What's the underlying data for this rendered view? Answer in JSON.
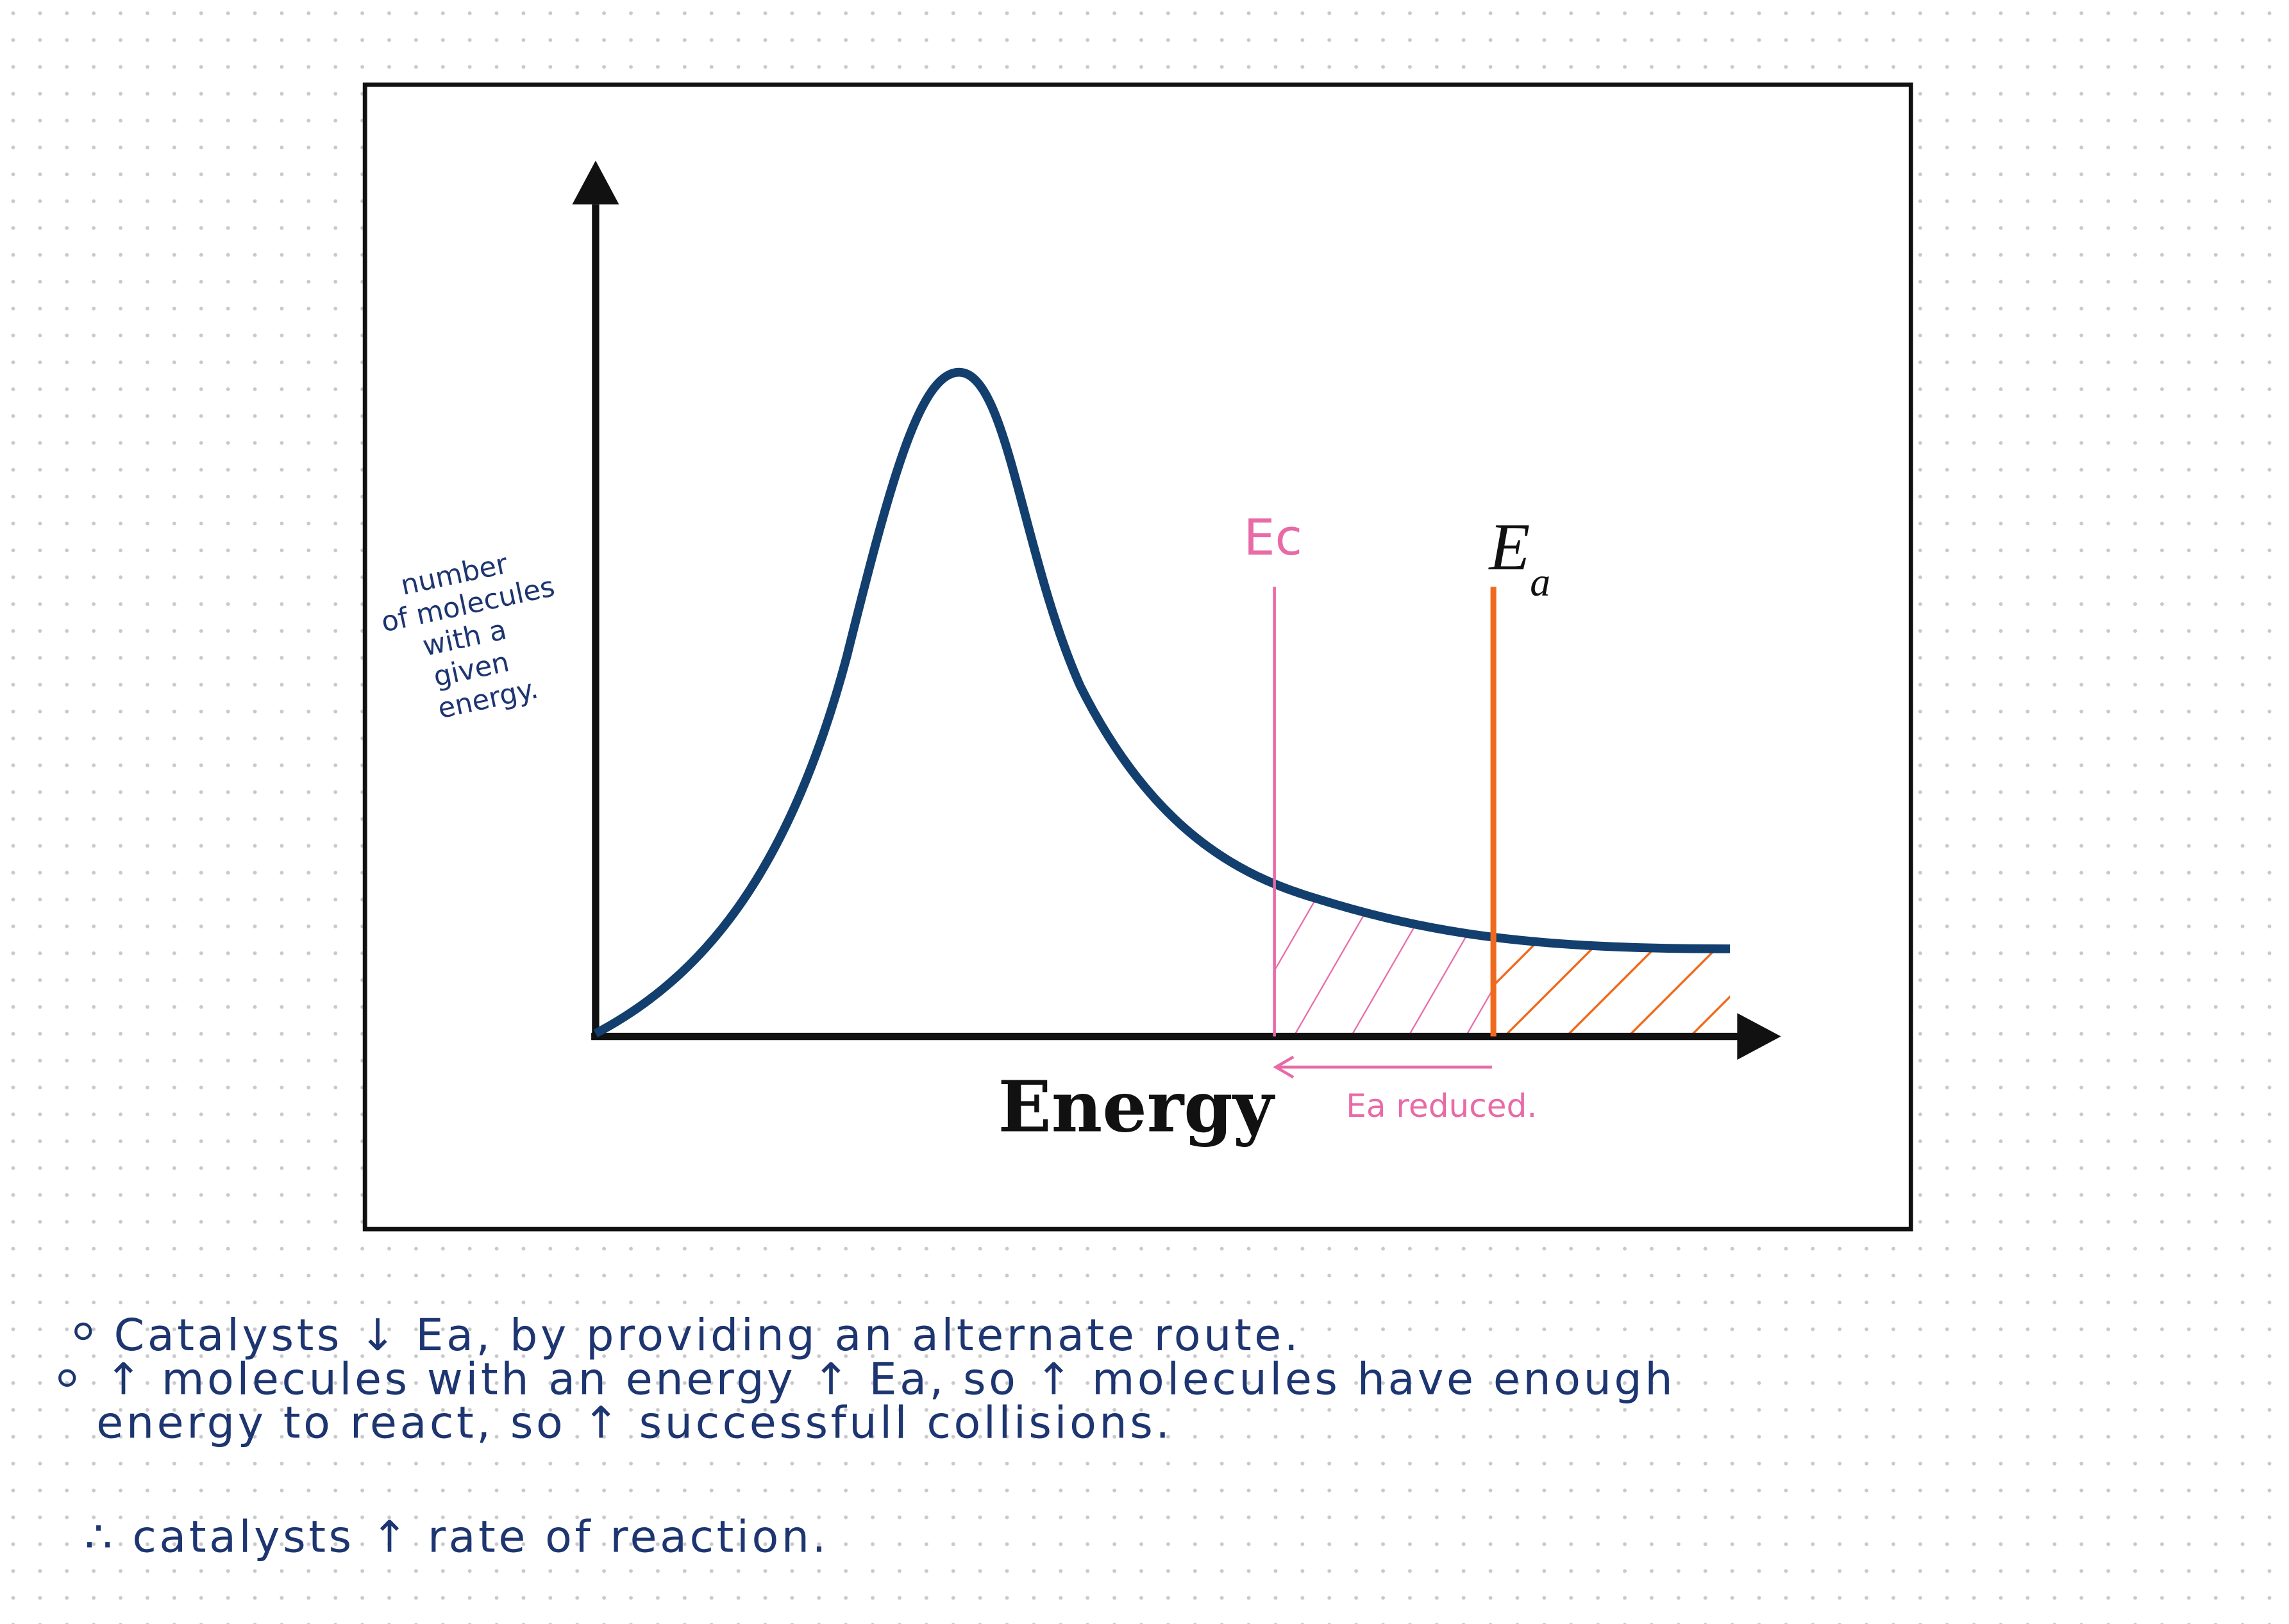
{
  "diagram": {
    "y_axis_label": [
      "number",
      "of molecules",
      "with a",
      "given",
      "energy."
    ],
    "x_axis_label": "Energy",
    "catalyst_marker": "Ec",
    "activation_marker": {
      "symbol": "E",
      "subscript": "a"
    },
    "arrow_label": "Ea reduced."
  },
  "notes": [
    "Catalysts ↓ Ea, by providing an alternate route.",
    "↑ molecules with an energy ↑ Ea, so ↑ molecules have enough",
    "energy to react, so ↑ successfull collisions.",
    "∴ catalysts ↑ rate of reaction."
  ]
}
